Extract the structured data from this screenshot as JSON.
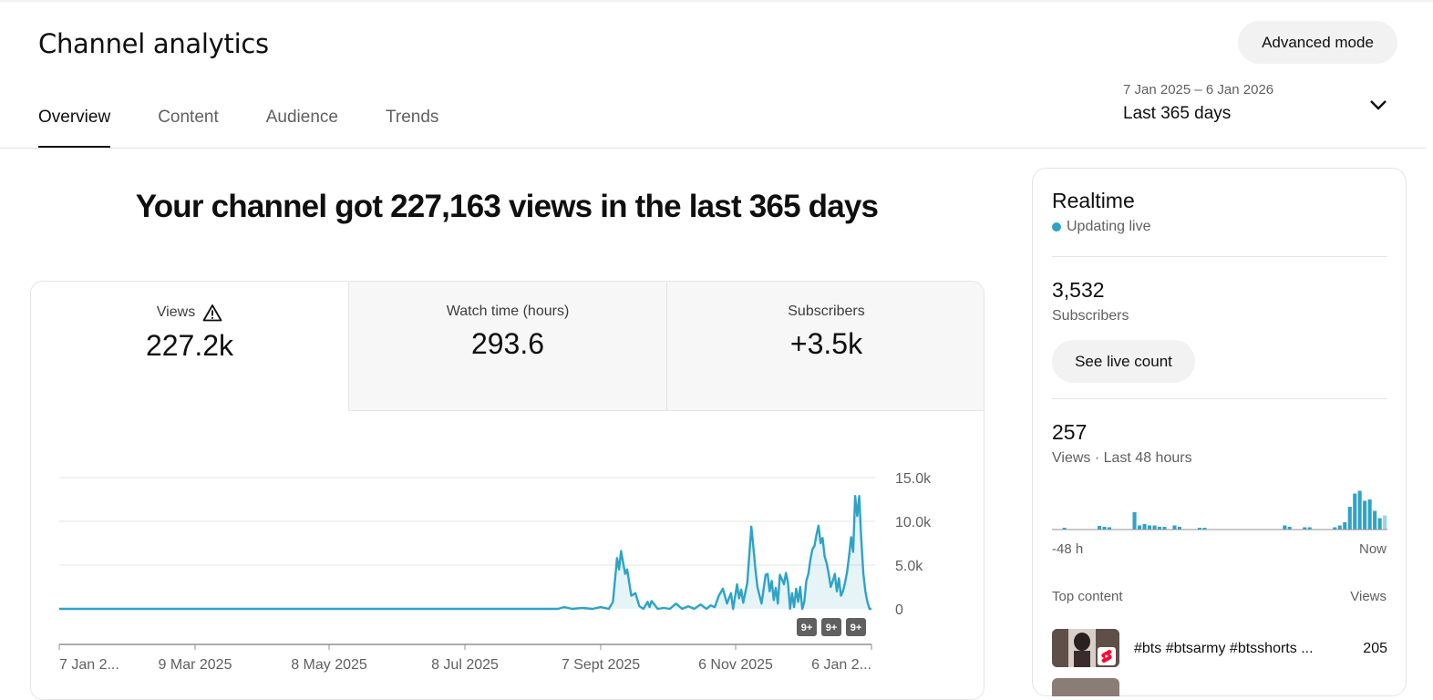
{
  "header": {
    "title": "Channel analytics",
    "advanced_mode_label": "Advanced mode",
    "tabs": [
      {
        "label": "Overview",
        "active": true
      },
      {
        "label": "Content",
        "active": false
      },
      {
        "label": "Audience",
        "active": false
      },
      {
        "label": "Trends",
        "active": false
      }
    ],
    "date_range": "7 Jan 2025 – 6 Jan 2026",
    "date_label": "Last 365 days",
    "chevron_icon": "chevron-down-icon"
  },
  "headline": "Your channel got 227,163 views in the last 365 days",
  "metrics": [
    {
      "label": "Views",
      "value": "227.2k",
      "icon": "warning-icon"
    },
    {
      "label": "Watch time (hours)",
      "value": "293.6"
    },
    {
      "label": "Subscribers",
      "value": "+3.5k"
    }
  ],
  "chart_data": {
    "type": "line",
    "series_color": "#2ea3c6",
    "x_tick_labels": [
      "7 Jan 2...",
      "9 Mar 2025",
      "8 May 2025",
      "8 Jul 2025",
      "7 Sept 2025",
      "6 Nov 2025",
      "6 Jan 2..."
    ],
    "y_tick_labels": [
      "15.0k",
      "10.0k",
      "5.0k",
      "0"
    ],
    "ylim": [
      0,
      15000
    ],
    "markers": [
      "9+",
      "9+",
      "9+"
    ],
    "points": [
      [
        0,
        0
      ],
      [
        245,
        0
      ],
      [
        248,
        200
      ],
      [
        252,
        0
      ],
      [
        257,
        100
      ],
      [
        262,
        0
      ],
      [
        266,
        200
      ],
      [
        270,
        0
      ],
      [
        272,
        800
      ],
      [
        274,
        5800
      ],
      [
        275,
        4500
      ],
      [
        276,
        6600
      ],
      [
        278,
        4000
      ],
      [
        279,
        4500
      ],
      [
        281,
        1500
      ],
      [
        283,
        1800
      ],
      [
        285,
        300
      ],
      [
        287,
        0
      ],
      [
        289,
        800
      ],
      [
        290,
        200
      ],
      [
        291,
        900
      ],
      [
        294,
        0
      ],
      [
        297,
        100
      ],
      [
        300,
        0
      ],
      [
        303,
        600
      ],
      [
        306,
        0
      ],
      [
        309,
        300
      ],
      [
        312,
        0
      ],
      [
        315,
        500
      ],
      [
        318,
        0
      ],
      [
        320,
        400
      ],
      [
        322,
        200
      ],
      [
        324,
        1500
      ],
      [
        326,
        2300
      ],
      [
        328,
        600
      ],
      [
        330,
        1800
      ],
      [
        331,
        0
      ],
      [
        333,
        2800
      ],
      [
        334,
        1200
      ],
      [
        335,
        2200
      ],
      [
        336,
        700
      ],
      [
        338,
        3000
      ],
      [
        340,
        9400
      ],
      [
        341,
        7000
      ],
      [
        342,
        4500
      ],
      [
        343,
        2500
      ],
      [
        345,
        600
      ],
      [
        347,
        3900
      ],
      [
        348,
        4000
      ],
      [
        349,
        2000
      ],
      [
        350,
        3200
      ],
      [
        351,
        1000
      ],
      [
        352,
        2400
      ],
      [
        353,
        600
      ],
      [
        354,
        3900
      ],
      [
        355,
        3400
      ],
      [
        356,
        2800
      ],
      [
        357,
        4100
      ],
      [
        358,
        3000
      ],
      [
        359,
        0
      ],
      [
        360,
        1800
      ],
      [
        361,
        200
      ],
      [
        362,
        2300
      ],
      [
        363,
        800
      ],
      [
        364,
        2500
      ],
      [
        365,
        0
      ],
      [
        366,
        800
      ],
      [
        367,
        3200
      ],
      [
        368,
        4000
      ],
      [
        369,
        5600
      ],
      [
        370,
        6800
      ],
      [
        371,
        7200
      ],
      [
        372,
        8500
      ],
      [
        373,
        9500
      ],
      [
        374,
        7500
      ],
      [
        375,
        8100
      ],
      [
        376,
        6000
      ],
      [
        377,
        5200
      ],
      [
        378,
        4000
      ],
      [
        379,
        2500
      ],
      [
        380,
        3200
      ],
      [
        381,
        4000
      ],
      [
        382,
        2000
      ],
      [
        383,
        3500
      ],
      [
        384,
        1500
      ],
      [
        385,
        2000
      ],
      [
        386,
        3000
      ],
      [
        387,
        4200
      ],
      [
        388,
        6000
      ],
      [
        389,
        8200
      ],
      [
        390,
        6500
      ],
      [
        391,
        12900
      ],
      [
        392,
        10600
      ],
      [
        393,
        12900
      ],
      [
        394,
        8000
      ],
      [
        395,
        4000
      ],
      [
        396,
        2000
      ],
      [
        397,
        800
      ],
      [
        398,
        0
      ],
      [
        399,
        0
      ]
    ]
  },
  "realtime": {
    "title": "Realtime",
    "status": "Updating live",
    "subscribers_value": "3,532",
    "subscribers_label": "Subscribers",
    "live_count_label": "See live count",
    "views_value": "257",
    "views_label": "Views · Last 48 hours",
    "axis_left": "-48 h",
    "axis_right": "Now",
    "bars": [
      0,
      0,
      0.03,
      0,
      0,
      0,
      0,
      0,
      0,
      0.08,
      0.06,
      0.05,
      0,
      0,
      0,
      0,
      0.38,
      0.09,
      0.12,
      0.09,
      0.09,
      0.06,
      0.06,
      0,
      0.09,
      0.06,
      0,
      0,
      0,
      0.03,
      0.03,
      0,
      0,
      0,
      0,
      0,
      0,
      0,
      0,
      0,
      0,
      0,
      0,
      0,
      0,
      0,
      0.09,
      0.06,
      0,
      0,
      0.05,
      0.05,
      0,
      0,
      0,
      0,
      0.05,
      0.09,
      0.16,
      0.5,
      0.79,
      0.85,
      0.63,
      0.66,
      0.41,
      0.25,
      0.31
    ],
    "top_content_label": "Top content",
    "top_content_views_label": "Views",
    "top_content": [
      {
        "title": "#bts #btsarmy #btsshorts ...",
        "views": "205",
        "badge_icon": "shorts-icon"
      }
    ]
  }
}
